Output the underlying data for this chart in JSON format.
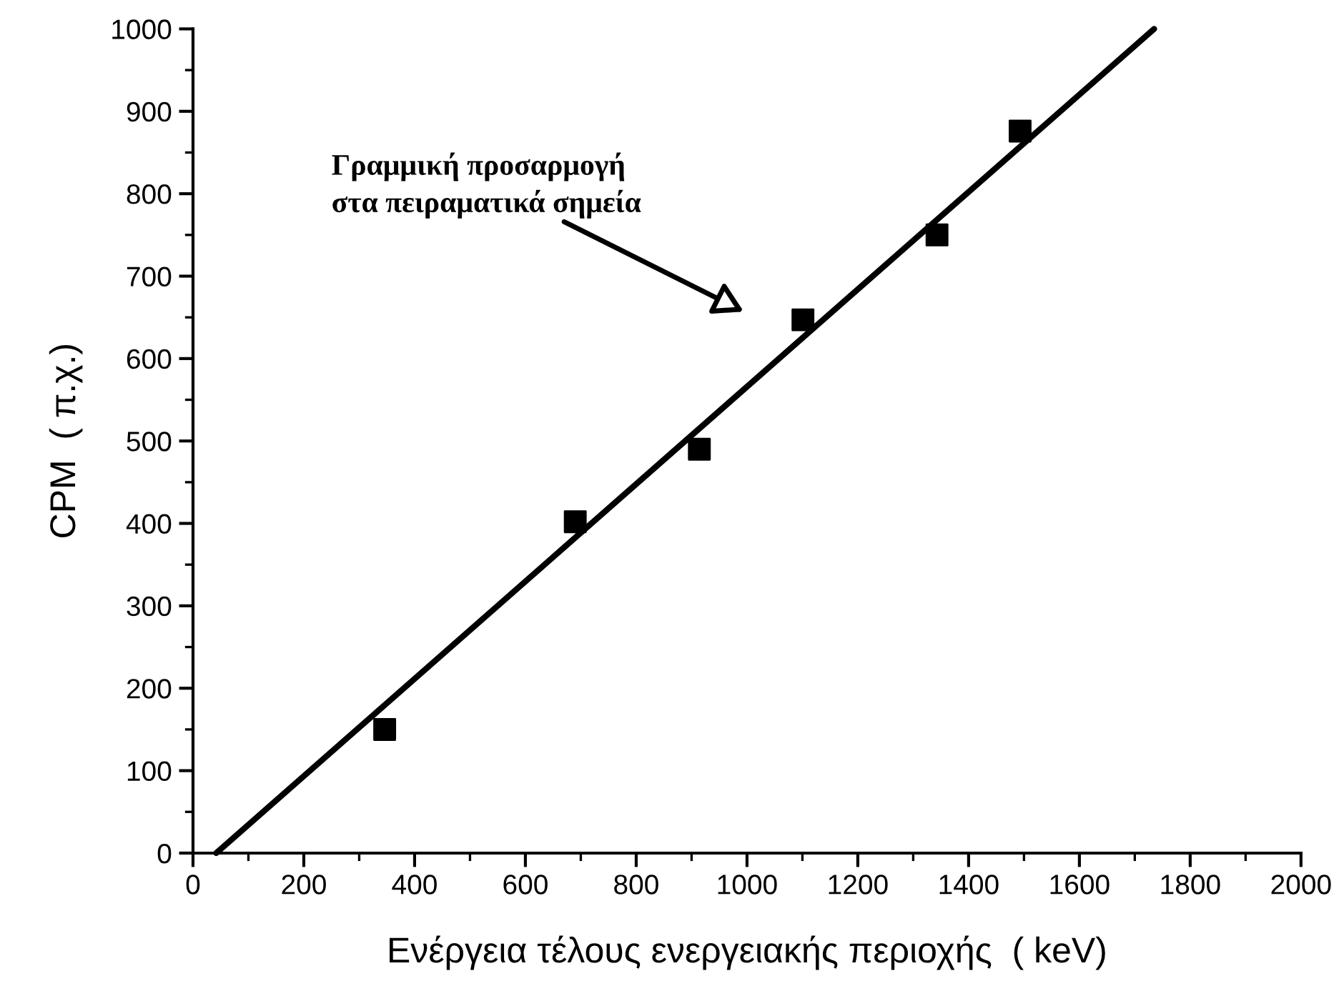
{
  "chart_data": {
    "type": "scatter",
    "xlabel": "Ενέργεια τέλους ενεργειακής περιοχής  ( keV)",
    "ylabel": "CPM  ( π.χ.)",
    "series": [
      {
        "color": "#000000",
        "marker": "square",
        "x": [
          346,
          690,
          914,
          1101,
          1343,
          1493
        ],
        "values": [
          150,
          402,
          490,
          647,
          750,
          876
        ]
      },
      {
        "type": "line",
        "color": "#000000",
        "marker": "none",
        "line_style": "solid",
        "x": [
          42,
          1735
        ],
        "values": [
          0,
          1000
        ]
      }
    ],
    "annotations": [
      "Γραμμική προσαρμογή\nστα πειραματικά σημεία"
    ],
    "xlim": [
      0,
      2000
    ],
    "xticks": [
      0,
      200,
      400,
      600,
      800,
      1000,
      1200,
      1400,
      1600,
      1800,
      2000
    ],
    "ylim": [
      0,
      1000
    ],
    "yticks": [
      0,
      100,
      200,
      300,
      400,
      500,
      600,
      700,
      800,
      900,
      1000
    ],
    "grid": false,
    "legend": false
  }
}
